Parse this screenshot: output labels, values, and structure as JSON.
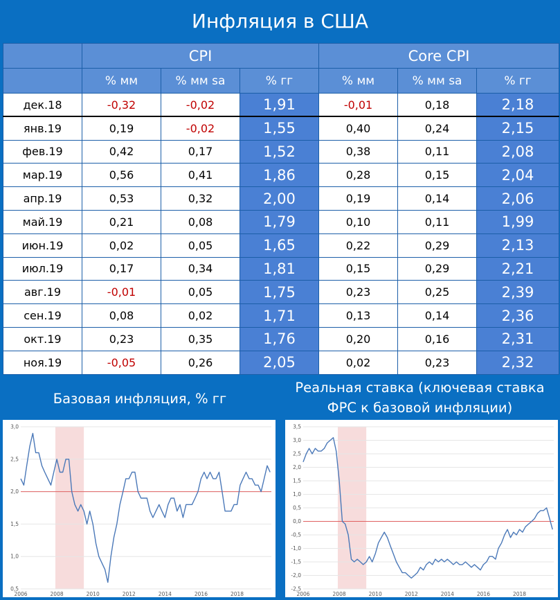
{
  "title": "Инфляция в США",
  "table": {
    "groups": [
      "CPI",
      "Core CPI"
    ],
    "subheaders": [
      "% мм",
      "% мм sa",
      "% гг",
      "% мм",
      "% мм sa",
      "% гг"
    ],
    "rows": [
      [
        "дек.18",
        "-0,32",
        "-0,02",
        "1,91",
        "-0,01",
        "0,18",
        "2,18"
      ],
      [
        "янв.19",
        "0,19",
        "-0,02",
        "1,55",
        "0,40",
        "0,24",
        "2,15"
      ],
      [
        "фев.19",
        "0,42",
        "0,17",
        "1,52",
        "0,38",
        "0,11",
        "2,08"
      ],
      [
        "мар.19",
        "0,56",
        "0,41",
        "1,86",
        "0,28",
        "0,15",
        "2,04"
      ],
      [
        "апр.19",
        "0,53",
        "0,32",
        "2,00",
        "0,19",
        "0,14",
        "2,06"
      ],
      [
        "май.19",
        "0,21",
        "0,08",
        "1,79",
        "0,10",
        "0,11",
        "1,99"
      ],
      [
        "июн.19",
        "0,02",
        "0,05",
        "1,65",
        "0,22",
        "0,29",
        "2,13"
      ],
      [
        "июл.19",
        "0,17",
        "0,34",
        "1,81",
        "0,15",
        "0,29",
        "2,21"
      ],
      [
        "авг.19",
        "-0,01",
        "0,05",
        "1,75",
        "0,23",
        "0,25",
        "2,39"
      ],
      [
        "сен.19",
        "0,08",
        "0,02",
        "1,71",
        "0,13",
        "0,14",
        "2,36"
      ],
      [
        "окт.19",
        "0,23",
        "0,35",
        "1,76",
        "0,20",
        "0,16",
        "2,31"
      ],
      [
        "ноя.19",
        "-0,05",
        "0,26",
        "2,05",
        "0,02",
        "0,23",
        "2,32"
      ]
    ]
  },
  "captions": {
    "left": "Базовая инфляция, % гг",
    "right_line1": "Реальная ставка (ключевая ставка",
    "right_line2": "ФРС к базовой инфляции)"
  },
  "colors": {
    "background": "#0a6fc2",
    "header": "#5b8fd6",
    "yoy_cell": "#4a80d4",
    "negative": "#c00000",
    "line": "#4a78b8",
    "reference": "#e06060",
    "recession": "#f7dcdc"
  },
  "chart_data": [
    {
      "type": "line",
      "title": "",
      "xlim": [
        2006,
        2019.9
      ],
      "ylim": [
        0.5,
        3.0
      ],
      "x_ticks": [
        "2006",
        "2008",
        "2010",
        "2012",
        "2014",
        "2016",
        "2018"
      ],
      "y_ticks": [
        "3,0",
        "2,5",
        "2,0",
        "1,5",
        "1,0",
        "0,5"
      ],
      "reference_line": 2.0,
      "shaded_range": [
        2007.92,
        2009.5
      ],
      "grid": true,
      "series": [
        {
          "x": [
            2006.0,
            2006.17,
            2006.33,
            2006.5,
            2006.67,
            2006.83,
            2007.0,
            2007.17,
            2007.33,
            2007.5,
            2007.67,
            2007.83,
            2008.0,
            2008.17,
            2008.33,
            2008.5,
            2008.67,
            2008.83,
            2009.0,
            2009.17,
            2009.33,
            2009.5,
            2009.67,
            2009.83,
            2010.0,
            2010.17,
            2010.33,
            2010.5,
            2010.67,
            2010.83,
            2011.0,
            2011.17,
            2011.33,
            2011.5,
            2011.67,
            2011.83,
            2012.0,
            2012.17,
            2012.33,
            2012.5,
            2012.67,
            2012.83,
            2013.0,
            2013.17,
            2013.33,
            2013.5,
            2013.67,
            2013.83,
            2014.0,
            2014.17,
            2014.33,
            2014.5,
            2014.67,
            2014.83,
            2015.0,
            2015.17,
            2015.33,
            2015.5,
            2015.67,
            2015.83,
            2016.0,
            2016.17,
            2016.33,
            2016.5,
            2016.67,
            2016.83,
            2017.0,
            2017.17,
            2017.33,
            2017.5,
            2017.67,
            2017.83,
            2018.0,
            2018.17,
            2018.33,
            2018.5,
            2018.67,
            2018.83,
            2019.0,
            2019.17,
            2019.33,
            2019.5,
            2019.67,
            2019.83
          ],
          "y": [
            2.2,
            2.1,
            2.4,
            2.7,
            2.9,
            2.6,
            2.6,
            2.4,
            2.3,
            2.2,
            2.1,
            2.3,
            2.5,
            2.3,
            2.3,
            2.5,
            2.5,
            2.0,
            1.8,
            1.7,
            1.8,
            1.7,
            1.5,
            1.7,
            1.5,
            1.2,
            1.0,
            0.9,
            0.8,
            0.6,
            1.0,
            1.3,
            1.5,
            1.8,
            2.0,
            2.2,
            2.2,
            2.3,
            2.3,
            2.0,
            1.9,
            1.9,
            1.9,
            1.7,
            1.6,
            1.7,
            1.8,
            1.7,
            1.6,
            1.8,
            1.9,
            1.9,
            1.7,
            1.8,
            1.6,
            1.8,
            1.8,
            1.8,
            1.9,
            2.0,
            2.2,
            2.3,
            2.2,
            2.3,
            2.2,
            2.2,
            2.3,
            2.0,
            1.7,
            1.7,
            1.7,
            1.8,
            1.8,
            2.1,
            2.2,
            2.3,
            2.2,
            2.2,
            2.1,
            2.1,
            2.0,
            2.2,
            2.4,
            2.3
          ]
        }
      ]
    },
    {
      "type": "line",
      "title": "",
      "xlim": [
        2006,
        2019.9
      ],
      "ylim": [
        -2.5,
        3.5
      ],
      "x_ticks": [
        "2006",
        "2008",
        "2010",
        "2012",
        "2014",
        "2016",
        "2018"
      ],
      "y_ticks": [
        "3,5",
        "3,0",
        "2,5",
        "2,0",
        "1,5",
        "1,0",
        "0,5",
        "0,0",
        "-0,5",
        "-1,0",
        "-1,5",
        "-2,0",
        "-2,5"
      ],
      "reference_line": 0.0,
      "shaded_range": [
        2007.92,
        2009.5
      ],
      "grid": true,
      "series": [
        {
          "x": [
            2006.0,
            2006.17,
            2006.33,
            2006.5,
            2006.67,
            2006.83,
            2007.0,
            2007.17,
            2007.33,
            2007.5,
            2007.67,
            2007.83,
            2008.0,
            2008.17,
            2008.33,
            2008.5,
            2008.67,
            2008.83,
            2009.0,
            2009.17,
            2009.33,
            2009.5,
            2009.67,
            2009.83,
            2010.0,
            2010.17,
            2010.33,
            2010.5,
            2010.67,
            2010.83,
            2011.0,
            2011.17,
            2011.33,
            2011.5,
            2011.67,
            2011.83,
            2012.0,
            2012.17,
            2012.33,
            2012.5,
            2012.67,
            2012.83,
            2013.0,
            2013.17,
            2013.33,
            2013.5,
            2013.67,
            2013.83,
            2014.0,
            2014.17,
            2014.33,
            2014.5,
            2014.67,
            2014.83,
            2015.0,
            2015.17,
            2015.33,
            2015.5,
            2015.67,
            2015.83,
            2016.0,
            2016.17,
            2016.33,
            2016.5,
            2016.67,
            2016.83,
            2017.0,
            2017.17,
            2017.33,
            2017.5,
            2017.67,
            2017.83,
            2018.0,
            2018.17,
            2018.33,
            2018.5,
            2018.67,
            2018.83,
            2019.0,
            2019.17,
            2019.33,
            2019.5,
            2019.67,
            2019.83
          ],
          "y": [
            2.2,
            2.5,
            2.7,
            2.5,
            2.7,
            2.6,
            2.6,
            2.7,
            2.9,
            3.0,
            3.1,
            2.6,
            1.5,
            0.0,
            -0.1,
            -0.5,
            -1.4,
            -1.5,
            -1.4,
            -1.5,
            -1.6,
            -1.5,
            -1.3,
            -1.5,
            -1.2,
            -0.8,
            -0.6,
            -0.4,
            -0.6,
            -0.9,
            -1.2,
            -1.5,
            -1.7,
            -1.9,
            -1.9,
            -2.0,
            -2.1,
            -2.0,
            -1.9,
            -1.7,
            -1.8,
            -1.6,
            -1.5,
            -1.6,
            -1.4,
            -1.5,
            -1.4,
            -1.5,
            -1.4,
            -1.5,
            -1.6,
            -1.5,
            -1.6,
            -1.6,
            -1.5,
            -1.6,
            -1.7,
            -1.6,
            -1.7,
            -1.8,
            -1.6,
            -1.5,
            -1.3,
            -1.3,
            -1.4,
            -1.0,
            -0.8,
            -0.5,
            -0.3,
            -0.6,
            -0.4,
            -0.5,
            -0.3,
            -0.4,
            -0.2,
            -0.1,
            0.0,
            0.1,
            0.3,
            0.4,
            0.4,
            0.5,
            0.1,
            -0.3
          ]
        }
      ]
    }
  ]
}
